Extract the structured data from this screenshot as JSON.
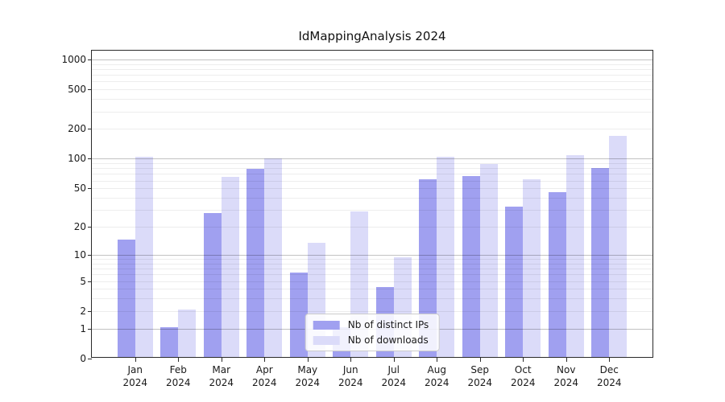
{
  "chart_data": {
    "type": "bar",
    "title": "IdMappingAnalysis 2024",
    "xlabel": "",
    "ylabel": "",
    "categories": [
      "Jan",
      "Feb",
      "Mar",
      "Apr",
      "May",
      "Jun",
      "Jul",
      "Aug",
      "Sep",
      "Oct",
      "Nov",
      "Dec"
    ],
    "category_year": "2024",
    "series": [
      {
        "name": "Nb of distinct IPs",
        "color": "#a0a0f0",
        "values": [
          14,
          1,
          27,
          76,
          6,
          1,
          4,
          60,
          64,
          31,
          44,
          78
        ]
      },
      {
        "name": "Nb of downloads",
        "color": "#dbdbf9",
        "values": [
          100,
          2,
          63,
          98,
          13,
          28,
          9,
          100,
          85,
          60,
          105,
          165
        ]
      }
    ],
    "yscale": "log1p",
    "ylim": [
      0,
      1225
    ],
    "yticks": [
      0,
      1,
      2,
      5,
      10,
      20,
      50,
      100,
      200,
      500,
      1000
    ],
    "ytick_labels": [
      "0",
      "1",
      "2",
      "5",
      "10",
      "20",
      "50",
      "100",
      "200",
      "500",
      "1000"
    ],
    "grid": {
      "on": true,
      "major": [
        1,
        10,
        100,
        1000
      ],
      "minor": [
        2,
        3,
        4,
        5,
        6,
        7,
        8,
        9,
        20,
        30,
        40,
        50,
        60,
        70,
        80,
        90,
        200,
        300,
        400,
        500,
        600,
        700,
        800,
        900
      ]
    },
    "legend": {
      "position": "lower center",
      "entries": [
        "Nb of distinct IPs",
        "Nb of downloads"
      ]
    }
  },
  "colors": {
    "distinct_ips_bar": "#a0a0f0",
    "downloads_bar": "#dbdbf9",
    "spine": "#2a2a2a",
    "major_gridline": "#c2c2c2",
    "minor_gridline": "#ededed",
    "background": "#ffffff",
    "text": "#1a1a1a"
  }
}
